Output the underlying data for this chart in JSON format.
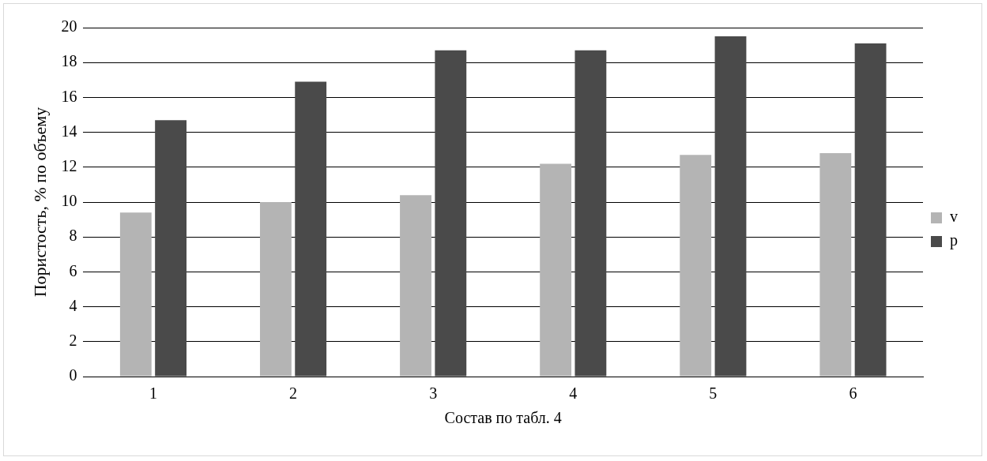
{
  "chart_data": {
    "type": "bar",
    "xlabel": "Состав по табл. 4",
    "ylabel": "Пористость, % по объему",
    "categories": [
      "1",
      "2",
      "3",
      "4",
      "5",
      "6"
    ],
    "series": [
      {
        "name": "v",
        "color": "#b4b4b4",
        "values": [
          9.4,
          10.0,
          10.4,
          12.2,
          12.7,
          12.8
        ]
      },
      {
        "name": "p",
        "color": "#4a4a4a",
        "values": [
          14.7,
          16.9,
          18.7,
          18.7,
          19.5,
          19.1
        ]
      }
    ],
    "ylim": [
      0,
      20
    ],
    "yticks": [
      0,
      2,
      4,
      6,
      8,
      10,
      12,
      14,
      16,
      18,
      20
    ],
    "grid": "y",
    "legend": "right"
  }
}
